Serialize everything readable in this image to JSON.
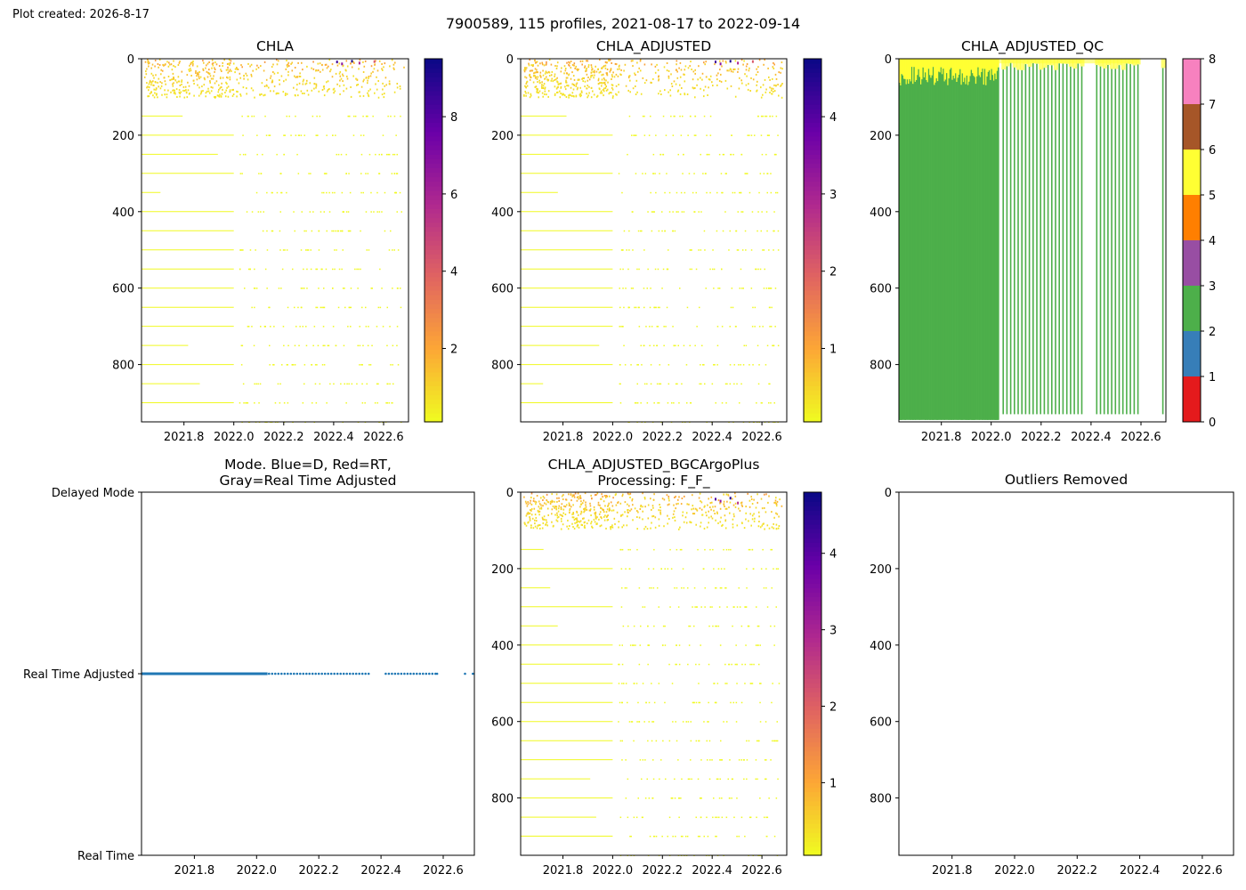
{
  "figure": {
    "created_label": "Plot created: 2026-8-17",
    "suptitle": "7900589, 115 profiles, 2021-08-17 to 2022-09-14"
  },
  "colors": {
    "axis": "#000000",
    "mode_points": "#1f77b4",
    "plasma_low": "#f0f921",
    "plasma_high": "#0d0887",
    "qc_class_colors": [
      "#e41a1c",
      "#377eb8",
      "#4daf4a",
      "#984ea3",
      "#ff7f00",
      "#ffff33",
      "#a65628",
      "#f781bf",
      "#999999"
    ]
  },
  "chart_data": [
    {
      "id": "chla",
      "type": "heatmap",
      "title": "CHLA",
      "xlabel": "",
      "ylabel": "",
      "xlim": [
        2021.63,
        2022.7
      ],
      "ylim": [
        950,
        0
      ],
      "xticks": [
        2021.8,
        2022.0,
        2022.2,
        2022.4,
        2022.6
      ],
      "xtick_labels": [
        "2021.8",
        "2022.0",
        "2022.2",
        "2022.4",
        "2022.6"
      ],
      "yticks": [
        0,
        200,
        400,
        600,
        800
      ],
      "ytick_labels": [
        "0",
        "200",
        "400",
        "600",
        "800"
      ],
      "colormap": "plasma_r",
      "colorbar": {
        "range": [
          0.1,
          9.5
        ],
        "ticks": [
          2,
          4,
          6,
          8
        ],
        "tick_labels": [
          "2",
          "4",
          "6",
          "8"
        ]
      },
      "surface_layer_depth": 100,
      "high_values": [
        {
          "x": 2022.41,
          "y": 5,
          "v": 8.5
        },
        {
          "x": 2022.43,
          "y": 10,
          "v": 6.8
        },
        {
          "x": 2022.47,
          "y": 3,
          "v": 9.3
        },
        {
          "x": 2022.5,
          "y": 8,
          "v": 5.8
        },
        {
          "x": 2022.56,
          "y": 4,
          "v": 4.2
        }
      ]
    },
    {
      "id": "chla_adj",
      "type": "heatmap",
      "title": "CHLA_ADJUSTED",
      "xlabel": "",
      "ylabel": "",
      "xlim": [
        2021.63,
        2022.7
      ],
      "ylim": [
        950,
        0
      ],
      "xticks": [
        2021.8,
        2022.0,
        2022.2,
        2022.4,
        2022.6
      ],
      "xtick_labels": [
        "2021.8",
        "2022.0",
        "2022.2",
        "2022.4",
        "2022.6"
      ],
      "yticks": [
        0,
        200,
        400,
        600,
        800
      ],
      "ytick_labels": [
        "0",
        "200",
        "400",
        "600",
        "800"
      ],
      "colormap": "plasma_r",
      "colorbar": {
        "range": [
          0.05,
          4.75
        ],
        "ticks": [
          1,
          2,
          3,
          4
        ],
        "tick_labels": [
          "1",
          "2",
          "3",
          "4"
        ]
      },
      "surface_layer_depth": 100,
      "high_values": [
        {
          "x": 2022.41,
          "y": 5,
          "v": 4.2
        },
        {
          "x": 2022.43,
          "y": 10,
          "v": 3.4
        },
        {
          "x": 2022.47,
          "y": 3,
          "v": 4.6
        },
        {
          "x": 2022.5,
          "y": 8,
          "v": 2.9
        },
        {
          "x": 2022.56,
          "y": 4,
          "v": 2.1
        }
      ]
    },
    {
      "id": "chla_adj_qc",
      "type": "bar",
      "title": "CHLA_ADJUSTED_QC",
      "xlabel": "",
      "ylabel": "",
      "xlim": [
        2021.63,
        2022.7
      ],
      "ylim": [
        950,
        0
      ],
      "xticks": [
        2021.8,
        2022.0,
        2022.2,
        2022.4,
        2022.6
      ],
      "xtick_labels": [
        "2021.8",
        "2022.0",
        "2022.2",
        "2022.4",
        "2022.6"
      ],
      "yticks": [
        0,
        200,
        400,
        600,
        800
      ],
      "ytick_labels": [
        "0",
        "200",
        "400",
        "600",
        "800"
      ],
      "colorbar": {
        "range": [
          0,
          8
        ],
        "ticks": [
          0,
          1,
          2,
          3,
          4,
          5,
          6,
          7,
          8
        ],
        "tick_labels": [
          "0",
          "1",
          "2",
          "3",
          "4",
          "5",
          "6",
          "7",
          "8"
        ]
      },
      "qc5_depth_daily_period": {
        "x_range": [
          2021.63,
          2022.03
        ],
        "depth_range": [
          20,
          70
        ]
      },
      "qc5_depth_later_period": {
        "x_range": [
          2022.03,
          2022.7
        ],
        "depth_range": [
          10,
          30
        ]
      },
      "qc2_bottom_depth": 945,
      "profiles_later_period": [
        2022.045,
        2022.06,
        2022.075,
        2022.09,
        2022.105,
        2022.12,
        2022.135,
        2022.15,
        2022.165,
        2022.18,
        2022.195,
        2022.21,
        2022.225,
        2022.24,
        2022.255,
        2022.27,
        2022.285,
        2022.3,
        2022.315,
        2022.33,
        2022.345,
        2022.36,
        2022.42,
        2022.435,
        2022.45,
        2022.465,
        2022.48,
        2022.495,
        2022.51,
        2022.525,
        2022.54,
        2022.555,
        2022.57,
        2022.585,
        2022.685
      ]
    },
    {
      "id": "mode",
      "type": "scatter",
      "title": "Mode. Blue=D, Red=RT,\nGray=Real Time Adjusted",
      "title_lines": [
        "Mode. Blue=D, Red=RT,",
        "Gray=Real Time Adjusted"
      ],
      "xlabel": "",
      "ylabel": "",
      "xlim": [
        2021.63,
        2022.7
      ],
      "ylim": [
        0,
        2
      ],
      "xticks": [
        2021.8,
        2022.0,
        2022.2,
        2022.4,
        2022.6
      ],
      "xtick_labels": [
        "2021.8",
        "2022.0",
        "2022.2",
        "2022.4",
        "2022.6"
      ],
      "yticks": [
        2,
        1,
        0
      ],
      "ytick_labels": [
        "Delayed Mode",
        "Real Time Adjusted",
        "Real Time"
      ],
      "dense_range": [
        2021.63,
        2022.035
      ],
      "points_x": [
        2022.04,
        2022.05,
        2022.06,
        2022.07,
        2022.08,
        2022.09,
        2022.1,
        2022.11,
        2022.12,
        2022.13,
        2022.14,
        2022.15,
        2022.16,
        2022.17,
        2022.18,
        2022.19,
        2022.2,
        2022.21,
        2022.22,
        2022.23,
        2022.24,
        2022.25,
        2022.26,
        2022.27,
        2022.28,
        2022.29,
        2022.3,
        2022.31,
        2022.32,
        2022.33,
        2022.34,
        2022.35,
        2022.36,
        2022.415,
        2022.425,
        2022.435,
        2022.445,
        2022.455,
        2022.465,
        2022.475,
        2022.485,
        2022.495,
        2022.505,
        2022.515,
        2022.525,
        2022.535,
        2022.545,
        2022.555,
        2022.565,
        2022.575,
        2022.58,
        2022.67,
        2022.695
      ],
      "points_y": 1
    },
    {
      "id": "chla_bgc",
      "type": "heatmap",
      "title": "CHLA_ADJUSTED_BGCArgoPlus\nProcessing: F_F_",
      "title_lines": [
        "CHLA_ADJUSTED_BGCArgoPlus",
        "Processing: F_F_"
      ],
      "xlabel": "",
      "ylabel": "",
      "xlim": [
        2021.63,
        2022.7
      ],
      "ylim": [
        950,
        0
      ],
      "xticks": [
        2021.8,
        2022.0,
        2022.2,
        2022.4,
        2022.6
      ],
      "xtick_labels": [
        "2021.8",
        "2022.0",
        "2022.2",
        "2022.4",
        "2022.6"
      ],
      "yticks": [
        0,
        200,
        400,
        600,
        800
      ],
      "ytick_labels": [
        "0",
        "200",
        "400",
        "600",
        "800"
      ],
      "colormap": "plasma_r",
      "colorbar": {
        "range": [
          0.05,
          4.8
        ],
        "ticks": [
          1,
          2,
          3,
          4
        ],
        "tick_labels": [
          "1",
          "2",
          "3",
          "4"
        ]
      },
      "surface_layer_depth": 95,
      "high_values": [
        {
          "x": 2022.41,
          "y": 15,
          "v": 4.1
        },
        {
          "x": 2022.43,
          "y": 20,
          "v": 3.3
        },
        {
          "x": 2022.47,
          "y": 12,
          "v": 4.5
        },
        {
          "x": 2022.5,
          "y": 25,
          "v": 2.8
        }
      ]
    },
    {
      "id": "outliers",
      "type": "scatter",
      "title": "Outliers Removed",
      "xlabel": "",
      "ylabel": "",
      "xlim": [
        2021.63,
        2022.7
      ],
      "ylim": [
        950,
        0
      ],
      "xticks": [
        2021.8,
        2022.0,
        2022.2,
        2022.4,
        2022.6
      ],
      "xtick_labels": [
        "2021.8",
        "2022.0",
        "2022.2",
        "2022.4",
        "2022.6"
      ],
      "yticks": [
        0,
        200,
        400,
        600,
        800
      ],
      "ytick_labels": [
        "0",
        "200",
        "400",
        "600",
        "800"
      ],
      "points_x": [],
      "points_y": []
    }
  ]
}
